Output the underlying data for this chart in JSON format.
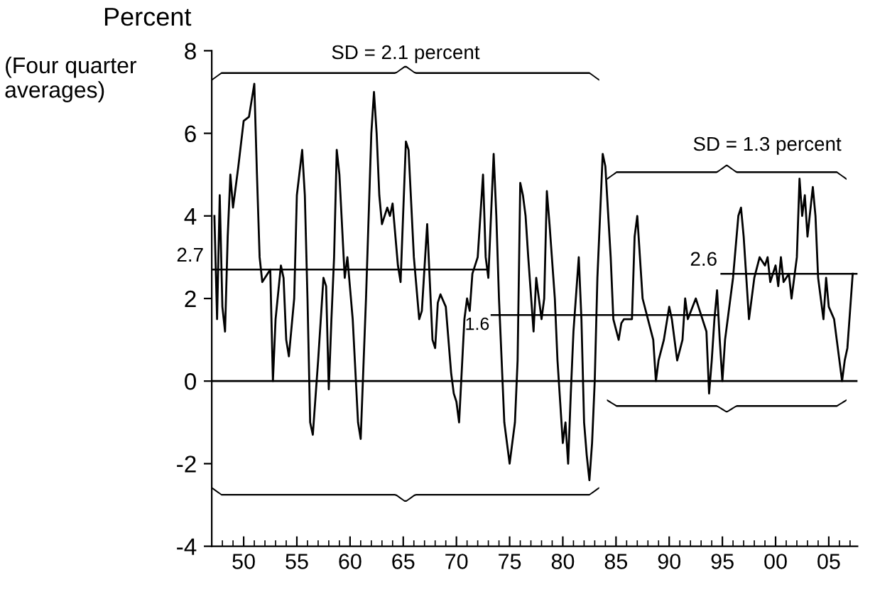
{
  "chart_data": {
    "type": "line",
    "ylabel": "Percent",
    "subtitle": "(Four quarter\naverages)",
    "xlim": [
      1947,
      2007.7
    ],
    "ylim": [
      -4,
      8
    ],
    "yticks": [
      -4,
      -2,
      0,
      2,
      4,
      6,
      8
    ],
    "xticks": [
      {
        "value": 1948,
        "label": null
      },
      {
        "value": 1949,
        "label": null
      },
      {
        "value": 1950,
        "label": "50"
      },
      {
        "value": 1951,
        "label": null
      },
      {
        "value": 1952,
        "label": null
      },
      {
        "value": 1953,
        "label": null
      },
      {
        "value": 1954,
        "label": null
      },
      {
        "value": 1955,
        "label": "55"
      },
      {
        "value": 1956,
        "label": null
      },
      {
        "value": 1957,
        "label": null
      },
      {
        "value": 1958,
        "label": null
      },
      {
        "value": 1959,
        "label": null
      },
      {
        "value": 1960,
        "label": "60"
      },
      {
        "value": 1961,
        "label": null
      },
      {
        "value": 1962,
        "label": null
      },
      {
        "value": 1963,
        "label": null
      },
      {
        "value": 1964,
        "label": null
      },
      {
        "value": 1965,
        "label": "65"
      },
      {
        "value": 1966,
        "label": null
      },
      {
        "value": 1967,
        "label": null
      },
      {
        "value": 1968,
        "label": null
      },
      {
        "value": 1969,
        "label": null
      },
      {
        "value": 1970,
        "label": "70"
      },
      {
        "value": 1971,
        "label": null
      },
      {
        "value": 1972,
        "label": null
      },
      {
        "value": 1973,
        "label": null
      },
      {
        "value": 1974,
        "label": null
      },
      {
        "value": 1975,
        "label": "75"
      },
      {
        "value": 1976,
        "label": null
      },
      {
        "value": 1977,
        "label": null
      },
      {
        "value": 1978,
        "label": null
      },
      {
        "value": 1979,
        "label": null
      },
      {
        "value": 1980,
        "label": "80"
      },
      {
        "value": 1981,
        "label": null
      },
      {
        "value": 1982,
        "label": null
      },
      {
        "value": 1983,
        "label": null
      },
      {
        "value": 1984,
        "label": null
      },
      {
        "value": 1985,
        "label": "85"
      },
      {
        "value": 1986,
        "label": null
      },
      {
        "value": 1987,
        "label": null
      },
      {
        "value": 1988,
        "label": null
      },
      {
        "value": 1989,
        "label": null
      },
      {
        "value": 1990,
        "label": "90"
      },
      {
        "value": 1991,
        "label": null
      },
      {
        "value": 1992,
        "label": null
      },
      {
        "value": 1993,
        "label": null
      },
      {
        "value": 1994,
        "label": null
      },
      {
        "value": 1995,
        "label": "95"
      },
      {
        "value": 1996,
        "label": null
      },
      {
        "value": 1997,
        "label": null
      },
      {
        "value": 1998,
        "label": null
      },
      {
        "value": 1999,
        "label": null
      },
      {
        "value": 2000,
        "label": "00"
      },
      {
        "value": 2001,
        "label": null
      },
      {
        "value": 2002,
        "label": null
      },
      {
        "value": 2003,
        "label": null
      },
      {
        "value": 2004,
        "label": null
      },
      {
        "value": 2005,
        "label": "05"
      },
      {
        "value": 2006,
        "label": null
      },
      {
        "value": 2007,
        "label": null
      }
    ],
    "grid": false,
    "legend": false,
    "series": [
      {
        "color": "#000000",
        "x": [
          1947.25,
          1947.5,
          1947.75,
          1948.0,
          1948.25,
          1948.5,
          1948.75,
          1949.0,
          1949.5,
          1950.0,
          1950.5,
          1951.0,
          1951.25,
          1951.5,
          1951.75,
          1952.0,
          1952.5,
          1952.75,
          1953.0,
          1953.5,
          1953.75,
          1954.0,
          1954.25,
          1954.75,
          1955.0,
          1955.5,
          1955.75,
          1956.0,
          1956.25,
          1956.5,
          1957.0,
          1957.25,
          1957.5,
          1957.75,
          1958.0,
          1958.25,
          1958.5,
          1958.75,
          1959.0,
          1959.5,
          1959.75,
          1960.25,
          1960.75,
          1961.0,
          1961.5,
          1962.0,
          1962.25,
          1962.5,
          1962.75,
          1963.0,
          1963.5,
          1963.75,
          1964.0,
          1964.5,
          1964.75,
          1965.25,
          1965.5,
          1966.0,
          1966.5,
          1966.75,
          1967.25,
          1967.75,
          1968.0,
          1968.25,
          1968.5,
          1969.0,
          1969.5,
          1969.75,
          1970.0,
          1970.25,
          1970.75,
          1971.0,
          1971.25,
          1971.5,
          1972.0,
          1972.5,
          1972.75,
          1973.0,
          1973.5,
          1973.75,
          1974.0,
          1974.5,
          1975.0,
          1975.5,
          1975.75,
          1976.0,
          1976.25,
          1976.5,
          1976.75,
          1977.25,
          1977.5,
          1978.0,
          1978.25,
          1978.5,
          1978.75,
          1979.25,
          1979.5,
          1979.75,
          1980.0,
          1980.25,
          1980.5,
          1980.75,
          1981.0,
          1981.5,
          1981.75,
          1982.0,
          1982.25,
          1982.5,
          1982.75,
          1983.0,
          1983.25,
          1983.75,
          1984.0,
          1984.5,
          1984.75,
          1985.25,
          1985.5,
          1985.75,
          1986.5,
          1986.75,
          1987.0,
          1987.5,
          1988.0,
          1988.5,
          1988.75,
          1989.0,
          1989.5,
          1990.0,
          1990.25,
          1990.75,
          1991.25,
          1991.5,
          1991.75,
          1992.5,
          1992.75,
          1993.5,
          1993.75,
          1994.0,
          1994.25,
          1994.5,
          1994.75,
          1995.0,
          1995.25,
          1995.75,
          1996.0,
          1996.5,
          1996.75,
          1997.0,
          1997.5,
          1998.0,
          1998.5,
          1999.0,
          1999.25,
          1999.5,
          2000.0,
          2000.25,
          2000.5,
          2000.75,
          2001.25,
          2001.5,
          2002.0,
          2002.25,
          2002.5,
          2002.75,
          2003.0,
          2003.5,
          2003.75,
          2004.0,
          2004.5,
          2004.75,
          2005.0,
          2005.5,
          2005.75,
          2006.0,
          2006.25,
          2006.5,
          2006.75,
          2007.25
        ],
        "values": [
          4.0,
          1.5,
          4.5,
          1.8,
          1.2,
          3.5,
          5.0,
          4.2,
          5.2,
          6.3,
          6.4,
          7.2,
          5.0,
          3.0,
          2.4,
          2.5,
          2.7,
          0.0,
          1.5,
          2.8,
          2.5,
          1.0,
          0.6,
          2.0,
          4.5,
          5.6,
          4.5,
          2.0,
          -1.0,
          -1.3,
          0.5,
          1.5,
          2.5,
          2.3,
          -0.2,
          1.5,
          3.0,
          5.6,
          5.0,
          2.5,
          3.0,
          1.5,
          -1.0,
          -1.4,
          2.0,
          6.0,
          7.0,
          6.0,
          4.5,
          3.8,
          4.2,
          4.0,
          4.3,
          2.8,
          2.4,
          5.8,
          5.6,
          3.0,
          1.5,
          1.7,
          3.8,
          1.0,
          0.8,
          1.9,
          2.1,
          1.8,
          0.2,
          -0.3,
          -0.5,
          -1.0,
          1.5,
          2.0,
          1.7,
          2.6,
          3.0,
          5.0,
          3.0,
          2.5,
          5.5,
          4.0,
          2.0,
          -1.0,
          -2.0,
          -1.0,
          0.5,
          4.8,
          4.5,
          4.0,
          3.0,
          1.2,
          2.5,
          1.5,
          2.0,
          4.6,
          3.8,
          2.0,
          0.5,
          -0.5,
          -1.5,
          -1.0,
          -2.0,
          -0.3,
          1.2,
          3.0,
          1.5,
          -1.0,
          -1.8,
          -2.4,
          -1.5,
          0.0,
          2.5,
          5.5,
          5.2,
          3.0,
          1.5,
          1.0,
          1.4,
          1.5,
          1.5,
          3.5,
          4.0,
          2.0,
          1.5,
          1.0,
          0.0,
          0.5,
          1.0,
          1.8,
          1.5,
          0.5,
          1.0,
          2.0,
          1.5,
          2.0,
          1.8,
          1.2,
          -0.3,
          0.5,
          1.5,
          2.2,
          1.0,
          0.0,
          1.0,
          2.0,
          2.5,
          4.0,
          4.2,
          3.5,
          1.5,
          2.5,
          3.0,
          2.8,
          3.0,
          2.4,
          2.8,
          2.3,
          3.0,
          2.4,
          2.6,
          2.0,
          3.0,
          4.9,
          4.0,
          4.5,
          3.5,
          4.7,
          4.0,
          2.5,
          1.5,
          2.5,
          1.8,
          1.5,
          1.0,
          0.5,
          0.0,
          0.5,
          0.8,
          2.6
        ]
      },
      {
        "type": "line",
        "color": "#000000",
        "x": [
          1947,
          1973
        ],
        "values": [
          2.7,
          2.7
        ]
      },
      {
        "type": "line",
        "color": "#000000",
        "x": [
          1973.3,
          1994.6
        ],
        "values": [
          1.6,
          1.6
        ]
      },
      {
        "type": "line",
        "color": "#000000",
        "x": [
          1994.9,
          2007.7
        ],
        "values": [
          2.6,
          2.6
        ]
      }
    ],
    "ref_lines": [
      {
        "axis": "y",
        "value": 0,
        "color": "#000000"
      }
    ],
    "annotations": [
      "SD = 2.1 percent",
      "SD = 1.3 percent",
      {
        "text": "2.7",
        "x": 1947,
        "y": 2.7
      },
      {
        "text": "1.6",
        "x": 1973.3,
        "y": 1.6
      },
      {
        "text": "2.6",
        "x": 1994.9,
        "y": 2.6
      }
    ]
  }
}
